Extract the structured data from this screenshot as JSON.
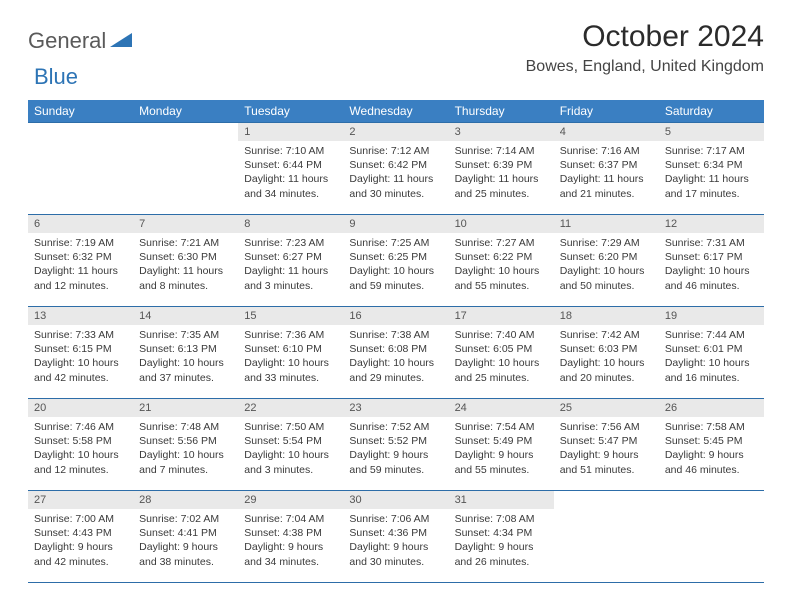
{
  "logo": {
    "text1": "General",
    "text2": "Blue"
  },
  "title": "October 2024",
  "location": "Bowes, England, United Kingdom",
  "colors": {
    "header_bg": "#3a7fc2",
    "header_text": "#ffffff",
    "daynum_bg": "#e9e9e9",
    "rule": "#2d6da8",
    "logo_gray": "#5a5a5a",
    "logo_blue": "#2d74b5"
  },
  "day_headers": [
    "Sunday",
    "Monday",
    "Tuesday",
    "Wednesday",
    "Thursday",
    "Friday",
    "Saturday"
  ],
  "weeks": [
    [
      {
        "n": "",
        "lines": [
          "",
          "",
          ""
        ]
      },
      {
        "n": "",
        "lines": [
          "",
          "",
          ""
        ]
      },
      {
        "n": "1",
        "lines": [
          "Sunrise: 7:10 AM",
          "Sunset: 6:44 PM",
          "Daylight: 11 hours and 34 minutes."
        ]
      },
      {
        "n": "2",
        "lines": [
          "Sunrise: 7:12 AM",
          "Sunset: 6:42 PM",
          "Daylight: 11 hours and 30 minutes."
        ]
      },
      {
        "n": "3",
        "lines": [
          "Sunrise: 7:14 AM",
          "Sunset: 6:39 PM",
          "Daylight: 11 hours and 25 minutes."
        ]
      },
      {
        "n": "4",
        "lines": [
          "Sunrise: 7:16 AM",
          "Sunset: 6:37 PM",
          "Daylight: 11 hours and 21 minutes."
        ]
      },
      {
        "n": "5",
        "lines": [
          "Sunrise: 7:17 AM",
          "Sunset: 6:34 PM",
          "Daylight: 11 hours and 17 minutes."
        ]
      }
    ],
    [
      {
        "n": "6",
        "lines": [
          "Sunrise: 7:19 AM",
          "Sunset: 6:32 PM",
          "Daylight: 11 hours and 12 minutes."
        ]
      },
      {
        "n": "7",
        "lines": [
          "Sunrise: 7:21 AM",
          "Sunset: 6:30 PM",
          "Daylight: 11 hours and 8 minutes."
        ]
      },
      {
        "n": "8",
        "lines": [
          "Sunrise: 7:23 AM",
          "Sunset: 6:27 PM",
          "Daylight: 11 hours and 3 minutes."
        ]
      },
      {
        "n": "9",
        "lines": [
          "Sunrise: 7:25 AM",
          "Sunset: 6:25 PM",
          "Daylight: 10 hours and 59 minutes."
        ]
      },
      {
        "n": "10",
        "lines": [
          "Sunrise: 7:27 AM",
          "Sunset: 6:22 PM",
          "Daylight: 10 hours and 55 minutes."
        ]
      },
      {
        "n": "11",
        "lines": [
          "Sunrise: 7:29 AM",
          "Sunset: 6:20 PM",
          "Daylight: 10 hours and 50 minutes."
        ]
      },
      {
        "n": "12",
        "lines": [
          "Sunrise: 7:31 AM",
          "Sunset: 6:17 PM",
          "Daylight: 10 hours and 46 minutes."
        ]
      }
    ],
    [
      {
        "n": "13",
        "lines": [
          "Sunrise: 7:33 AM",
          "Sunset: 6:15 PM",
          "Daylight: 10 hours and 42 minutes."
        ]
      },
      {
        "n": "14",
        "lines": [
          "Sunrise: 7:35 AM",
          "Sunset: 6:13 PM",
          "Daylight: 10 hours and 37 minutes."
        ]
      },
      {
        "n": "15",
        "lines": [
          "Sunrise: 7:36 AM",
          "Sunset: 6:10 PM",
          "Daylight: 10 hours and 33 minutes."
        ]
      },
      {
        "n": "16",
        "lines": [
          "Sunrise: 7:38 AM",
          "Sunset: 6:08 PM",
          "Daylight: 10 hours and 29 minutes."
        ]
      },
      {
        "n": "17",
        "lines": [
          "Sunrise: 7:40 AM",
          "Sunset: 6:05 PM",
          "Daylight: 10 hours and 25 minutes."
        ]
      },
      {
        "n": "18",
        "lines": [
          "Sunrise: 7:42 AM",
          "Sunset: 6:03 PM",
          "Daylight: 10 hours and 20 minutes."
        ]
      },
      {
        "n": "19",
        "lines": [
          "Sunrise: 7:44 AM",
          "Sunset: 6:01 PM",
          "Daylight: 10 hours and 16 minutes."
        ]
      }
    ],
    [
      {
        "n": "20",
        "lines": [
          "Sunrise: 7:46 AM",
          "Sunset: 5:58 PM",
          "Daylight: 10 hours and 12 minutes."
        ]
      },
      {
        "n": "21",
        "lines": [
          "Sunrise: 7:48 AM",
          "Sunset: 5:56 PM",
          "Daylight: 10 hours and 7 minutes."
        ]
      },
      {
        "n": "22",
        "lines": [
          "Sunrise: 7:50 AM",
          "Sunset: 5:54 PM",
          "Daylight: 10 hours and 3 minutes."
        ]
      },
      {
        "n": "23",
        "lines": [
          "Sunrise: 7:52 AM",
          "Sunset: 5:52 PM",
          "Daylight: 9 hours and 59 minutes."
        ]
      },
      {
        "n": "24",
        "lines": [
          "Sunrise: 7:54 AM",
          "Sunset: 5:49 PM",
          "Daylight: 9 hours and 55 minutes."
        ]
      },
      {
        "n": "25",
        "lines": [
          "Sunrise: 7:56 AM",
          "Sunset: 5:47 PM",
          "Daylight: 9 hours and 51 minutes."
        ]
      },
      {
        "n": "26",
        "lines": [
          "Sunrise: 7:58 AM",
          "Sunset: 5:45 PM",
          "Daylight: 9 hours and 46 minutes."
        ]
      }
    ],
    [
      {
        "n": "27",
        "lines": [
          "Sunrise: 7:00 AM",
          "Sunset: 4:43 PM",
          "Daylight: 9 hours and 42 minutes."
        ]
      },
      {
        "n": "28",
        "lines": [
          "Sunrise: 7:02 AM",
          "Sunset: 4:41 PM",
          "Daylight: 9 hours and 38 minutes."
        ]
      },
      {
        "n": "29",
        "lines": [
          "Sunrise: 7:04 AM",
          "Sunset: 4:38 PM",
          "Daylight: 9 hours and 34 minutes."
        ]
      },
      {
        "n": "30",
        "lines": [
          "Sunrise: 7:06 AM",
          "Sunset: 4:36 PM",
          "Daylight: 9 hours and 30 minutes."
        ]
      },
      {
        "n": "31",
        "lines": [
          "Sunrise: 7:08 AM",
          "Sunset: 4:34 PM",
          "Daylight: 9 hours and 26 minutes."
        ]
      },
      {
        "n": "",
        "lines": [
          "",
          "",
          ""
        ]
      },
      {
        "n": "",
        "lines": [
          "",
          "",
          ""
        ]
      }
    ]
  ]
}
